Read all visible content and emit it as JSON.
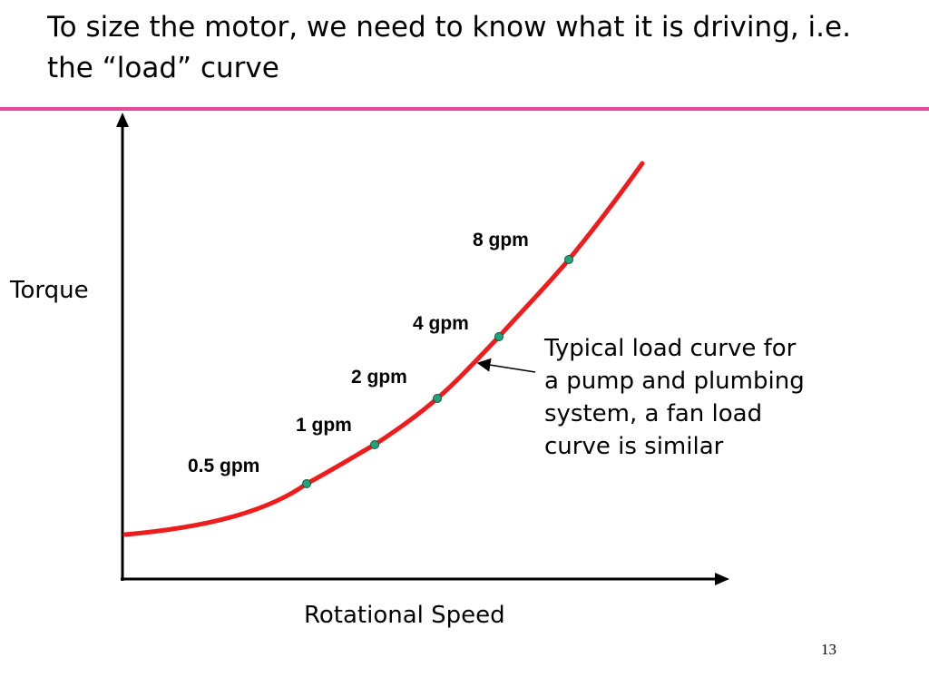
{
  "slide": {
    "title": "To size the motor, we need to know what it is driving, i.e. the “load” curve",
    "page_number": "13",
    "accent_color": "#e8489c"
  },
  "diagram": {
    "y_axis_label": "Torque",
    "x_axis_label": "Rotational Speed",
    "curve_color": "#ee1c1c",
    "point_color": "#1fa37a",
    "note": "Typical load curve for a pump and plumbing system, a fan load curve is similar",
    "points": [
      {
        "label": "0.5 gpm"
      },
      {
        "label": "1 gpm"
      },
      {
        "label": "2 gpm"
      },
      {
        "label": "4 gpm"
      },
      {
        "label": "8 gpm"
      }
    ]
  }
}
